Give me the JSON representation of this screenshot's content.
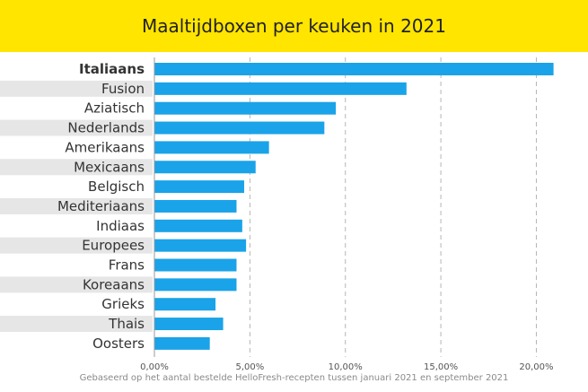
{
  "header": {
    "title": "Maaltijdboxen per keuken in 2021",
    "background_color": "#ffe500"
  },
  "chart_data": {
    "type": "bar",
    "orientation": "horizontal",
    "title": "Maaltijdboxen per keuken in 2021",
    "xlabel": "",
    "ylabel": "",
    "categories": [
      "Italiaans",
      "Fusion",
      "Aziatisch",
      "Nederlands",
      "Amerikaans",
      "Mexicaans",
      "Belgisch",
      "Mediteriaans",
      "Indiaas",
      "Europees",
      "Frans",
      "Koreaans",
      "Grieks",
      "Thais",
      "Oosters"
    ],
    "values": [
      20.9,
      13.2,
      9.5,
      8.9,
      6.0,
      5.3,
      4.7,
      4.3,
      4.6,
      4.8,
      4.3,
      4.3,
      3.2,
      3.6,
      2.9
    ],
    "unit": "%",
    "xlim": [
      0,
      22
    ],
    "xticks": [
      0,
      5,
      10,
      15,
      20
    ],
    "xtick_labels": [
      "0,00%",
      "5,00%",
      "10,00%",
      "15,00%",
      "20,00%"
    ],
    "highlight_category": "Italiaans",
    "bar_color": "#1aa3e8",
    "stripe_color": "#e6e6e6",
    "grid": "vertical dashed",
    "legend": "none"
  },
  "footnote": "Gebaseerd op het aantal bestelde HelloFresh-recepten tussen januari 2021 en september 2021"
}
